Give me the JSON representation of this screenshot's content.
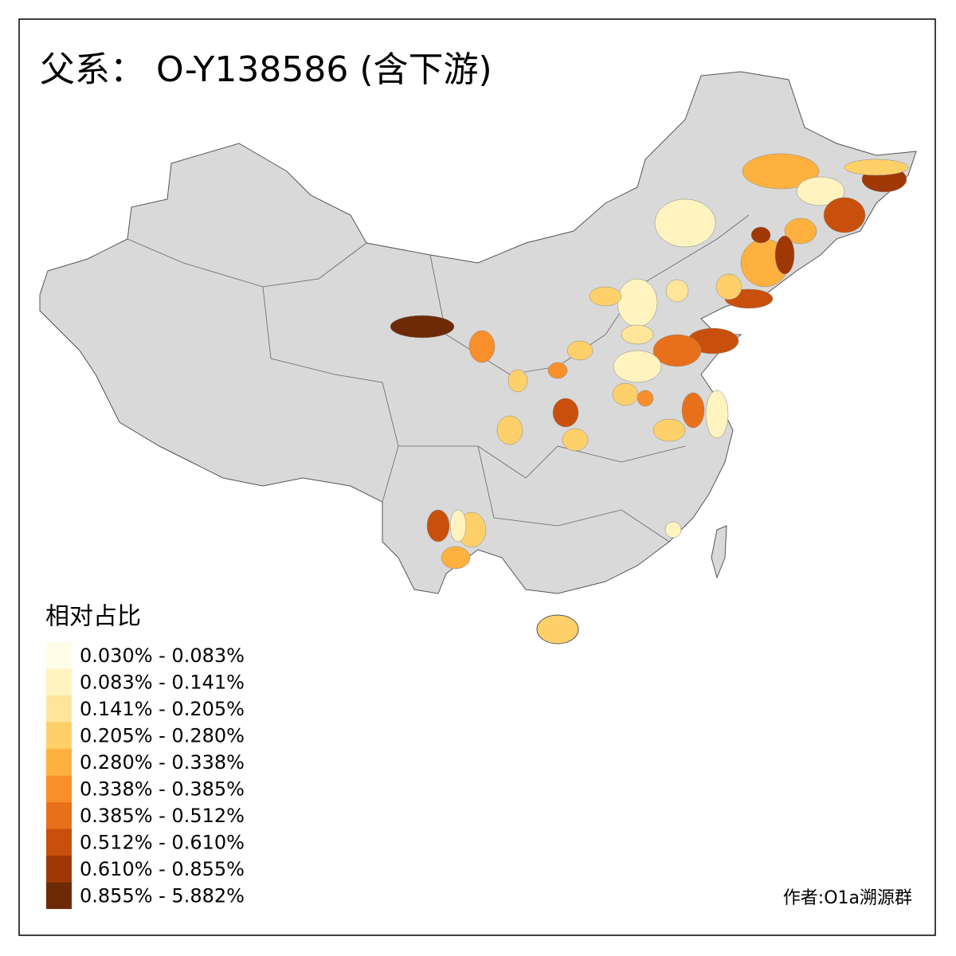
{
  "title": "父系： O-Y138586 (含下游)",
  "legend": {
    "title": "相对占比",
    "items": [
      {
        "label": "0.030% - 0.083%",
        "color": "#fffde6"
      },
      {
        "label": "0.083% - 0.141%",
        "color": "#fff4c0"
      },
      {
        "label": "0.141% - 0.205%",
        "color": "#fee59a"
      },
      {
        "label": "0.205% - 0.280%",
        "color": "#fed06a"
      },
      {
        "label": "0.280% - 0.338%",
        "color": "#feb13f"
      },
      {
        "label": "0.338% - 0.385%",
        "color": "#f98f2a"
      },
      {
        "label": "0.385% - 0.512%",
        "color": "#e8701a"
      },
      {
        "label": "0.512% - 0.610%",
        "color": "#c8500c"
      },
      {
        "label": "0.610% - 0.855%",
        "color": "#a03806"
      },
      {
        "label": "0.855% - 5.882%",
        "color": "#6e2a07"
      }
    ]
  },
  "credit": "作者:O1a溯源群"
}
